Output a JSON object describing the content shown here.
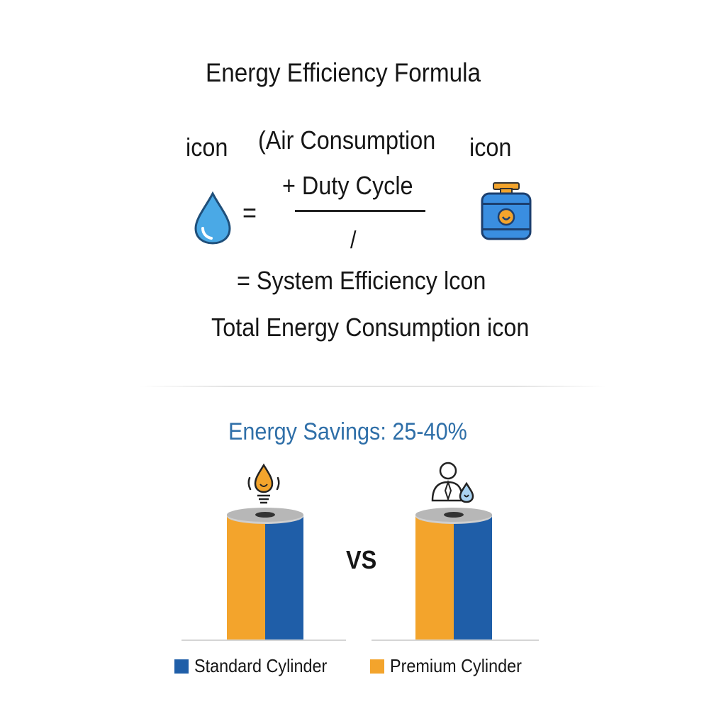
{
  "title": "Energy Efficiency Formula",
  "formula": {
    "icon_label_top_left": "icon",
    "icon_label_top_right": "icon",
    "numerator_line1": "(Air Consumption",
    "numerator_line2": "+ Duty Cycle",
    "equals": "=",
    "slash": "/",
    "result_line": "= System Efficiency lcon",
    "total_line": "Total Energy Consumption   icon"
  },
  "comparison": {
    "title": "Energy Savings: 25-40%",
    "vs_label": "VS"
  },
  "legend": {
    "standard": "Standard Cylinder",
    "premium": "Premium Cylinder"
  },
  "colors": {
    "standard_blue": "#1f5ea8",
    "premium_orange": "#f3a42c",
    "savings_title": "#2f6fa8",
    "drop_blue": "#4aa9e6"
  },
  "icons": [
    "water-drop-icon",
    "tank-icon",
    "oil-drop-bulb-icon",
    "person-drop-icon"
  ]
}
